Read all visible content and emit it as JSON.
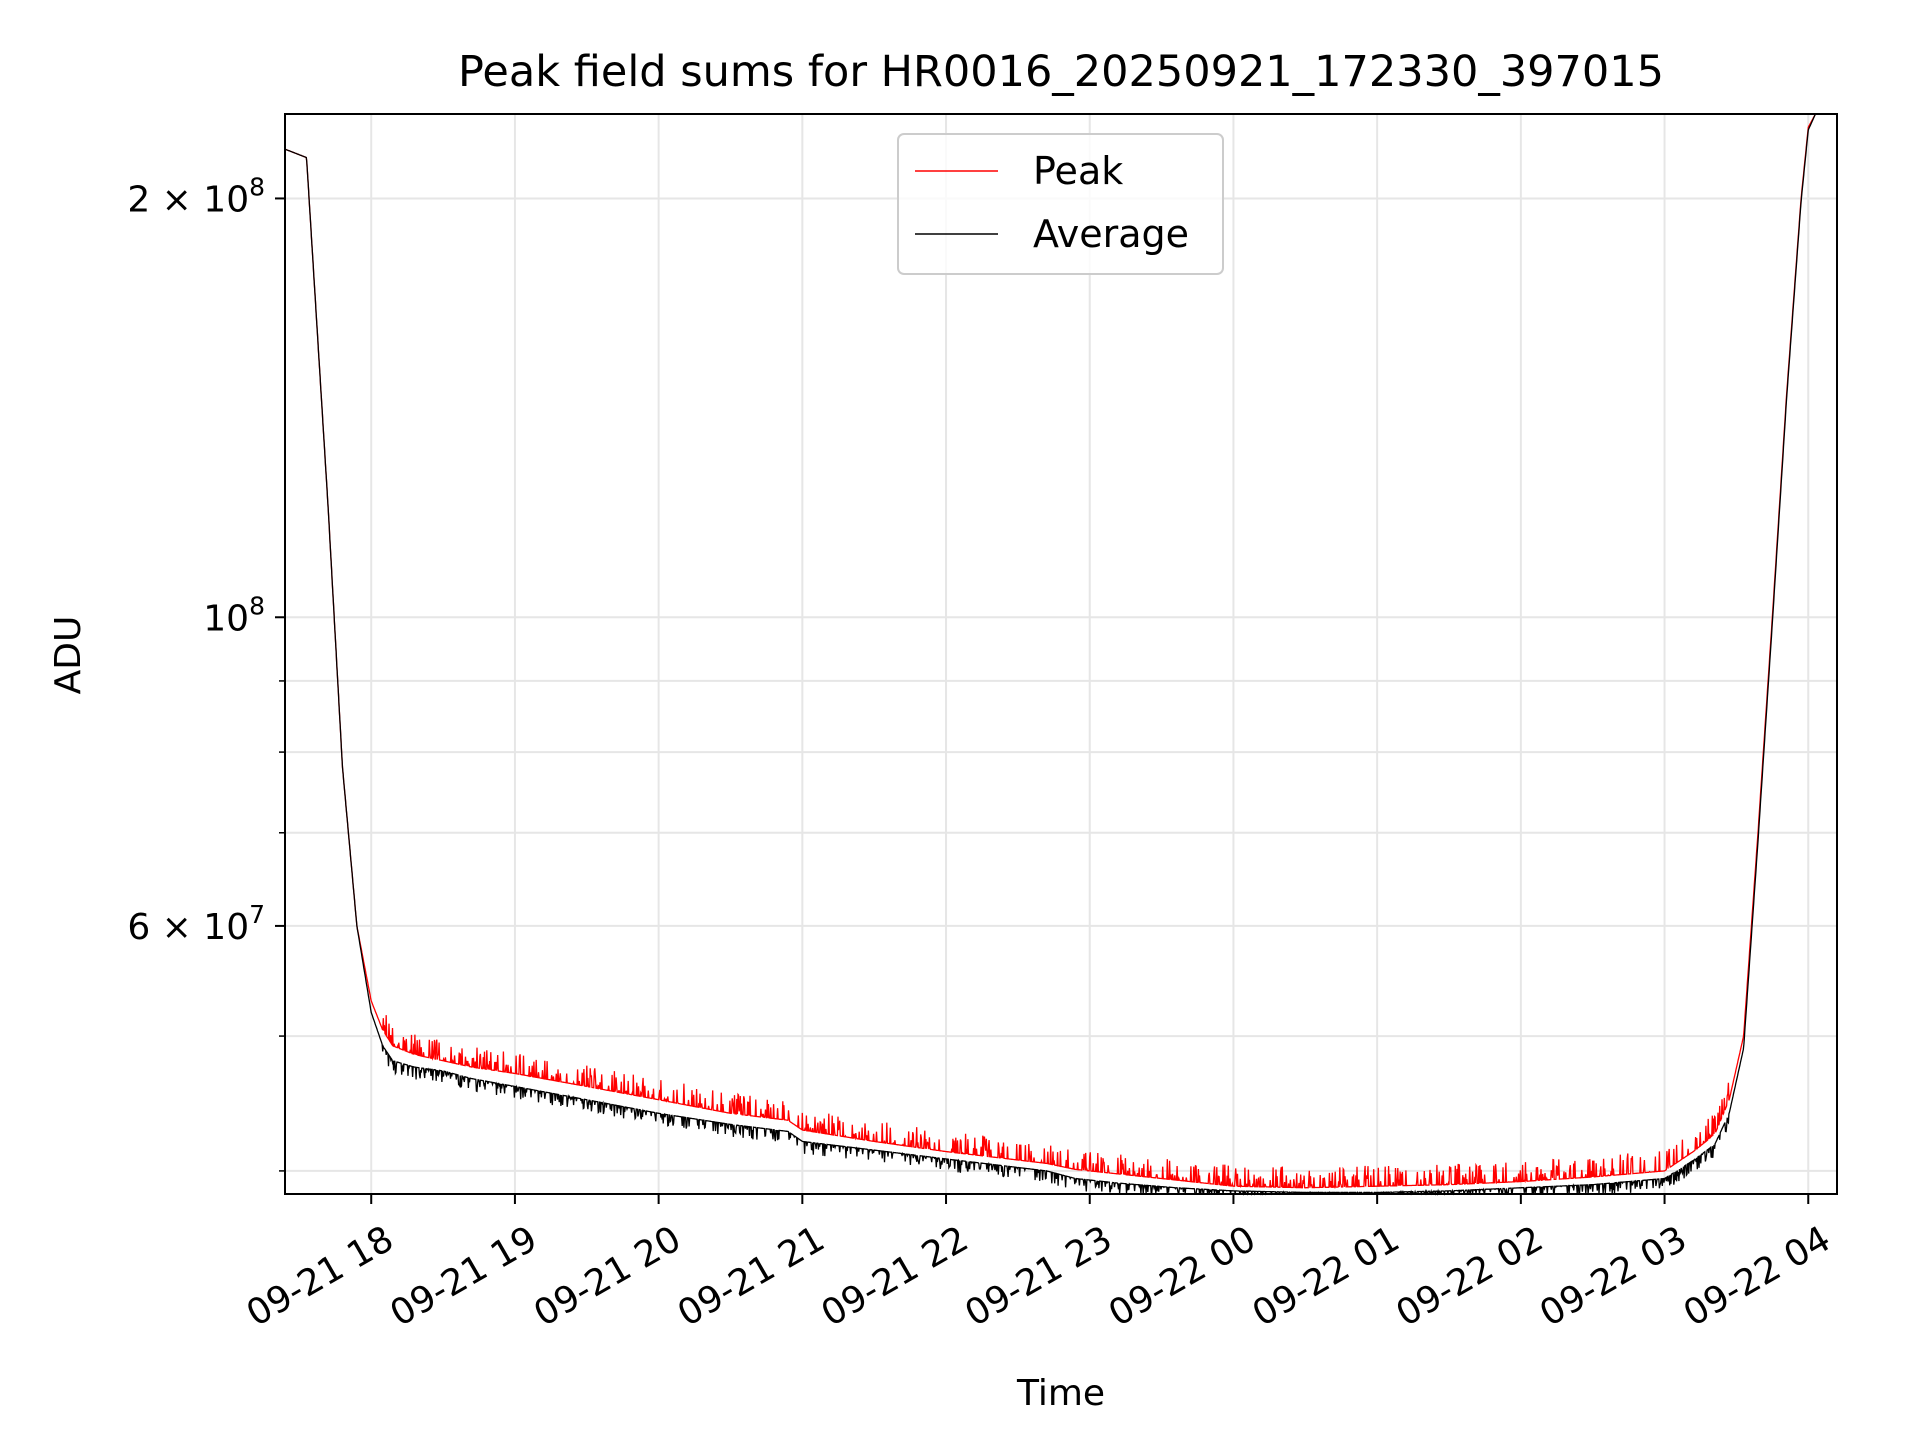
{
  "colors": {
    "peak": "#ff0000",
    "average": "#000000",
    "grid": "#e6e6e6",
    "background": "#ffffff"
  },
  "chart_data": {
    "type": "line",
    "title": "Peak field sums for HR0016_20250921_172330_397015",
    "xlabel": "Time",
    "ylabel": "ADU",
    "yscale": "log",
    "ylim": [
      38500000,
      230000000
    ],
    "xlim_hours": [
      -0.6,
      10.2
    ],
    "grid": true,
    "legend_position": "top-center",
    "x_ticks": [
      {
        "hours": 0,
        "label": "09-21 18"
      },
      {
        "hours": 1,
        "label": "09-21 19"
      },
      {
        "hours": 2,
        "label": "09-21 20"
      },
      {
        "hours": 3,
        "label": "09-21 21"
      },
      {
        "hours": 4,
        "label": "09-21 22"
      },
      {
        "hours": 5,
        "label": "09-21 23"
      },
      {
        "hours": 6,
        "label": "09-22 00"
      },
      {
        "hours": 7,
        "label": "09-22 01"
      },
      {
        "hours": 8,
        "label": "09-22 02"
      },
      {
        "hours": 9,
        "label": "09-22 03"
      },
      {
        "hours": 10,
        "label": "09-22 04"
      }
    ],
    "y_ticks": [
      {
        "value": 200000000,
        "mantissa": "2 × 10",
        "exp": "8"
      },
      {
        "value": 100000000,
        "mantissa": "10",
        "exp": "8"
      },
      {
        "value": 60000000,
        "mantissa": "6 × 10",
        "exp": "7"
      }
    ],
    "y_minor_gridlines": [
      40000000,
      50000000,
      70000000,
      80000000,
      90000000
    ],
    "series": [
      {
        "name": "Peak",
        "x_hours": [
          -0.6,
          -0.45,
          -0.3,
          -0.2,
          -0.1,
          0.0,
          0.08,
          0.15,
          0.3,
          0.5,
          0.7,
          1.0,
          1.5,
          2.0,
          2.5,
          2.9,
          3.0,
          3.5,
          4.0,
          4.35,
          4.7,
          4.9,
          5.2,
          5.6,
          6.0,
          6.5,
          7.0,
          7.5,
          8.0,
          8.5,
          9.0,
          9.2,
          9.35,
          9.45,
          9.55,
          9.65,
          9.75,
          9.85,
          9.95,
          10.0,
          10.05
        ],
        "values": [
          217000000,
          214000000,
          120000000,
          78000000,
          60000000,
          53000000,
          50500000,
          49200000,
          48500000,
          48000000,
          47500000,
          47000000,
          46000000,
          45000000,
          44000000,
          43500000,
          42800000,
          42000000,
          41300000,
          40900000,
          40500000,
          40100000,
          39800000,
          39400000,
          39000000,
          38900000,
          39000000,
          39100000,
          39300000,
          39600000,
          40000000,
          41300000,
          42500000,
          45000000,
          50000000,
          70000000,
          100000000,
          145000000,
          200000000,
          225000000,
          230000000
        ]
      },
      {
        "name": "Average",
        "x_hours": [
          -0.6,
          -0.45,
          -0.3,
          -0.2,
          -0.1,
          0.0,
          0.08,
          0.15,
          0.3,
          0.5,
          0.7,
          1.0,
          1.5,
          2.0,
          2.5,
          2.9,
          3.0,
          3.5,
          4.0,
          4.35,
          4.7,
          4.9,
          5.2,
          5.6,
          6.0,
          6.5,
          7.0,
          7.5,
          8.0,
          8.5,
          9.0,
          9.2,
          9.35,
          9.45,
          9.55,
          9.65,
          9.75,
          9.85,
          9.95,
          10.0,
          10.05
        ],
        "values": [
          217000000,
          214000000,
          120000000,
          78000000,
          60000000,
          52000000,
          49200000,
          48000000,
          47500000,
          47200000,
          46600000,
          46000000,
          45000000,
          44000000,
          43200000,
          42700000,
          42000000,
          41400000,
          40800000,
          40400000,
          40000000,
          39500000,
          39200000,
          38900000,
          38700000,
          38600000,
          38600000,
          38700000,
          38900000,
          39100000,
          39500000,
          40700000,
          41800000,
          44000000,
          49000000,
          69000000,
          99000000,
          144000000,
          199000000,
          224000000,
          230000000
        ]
      }
    ]
  }
}
